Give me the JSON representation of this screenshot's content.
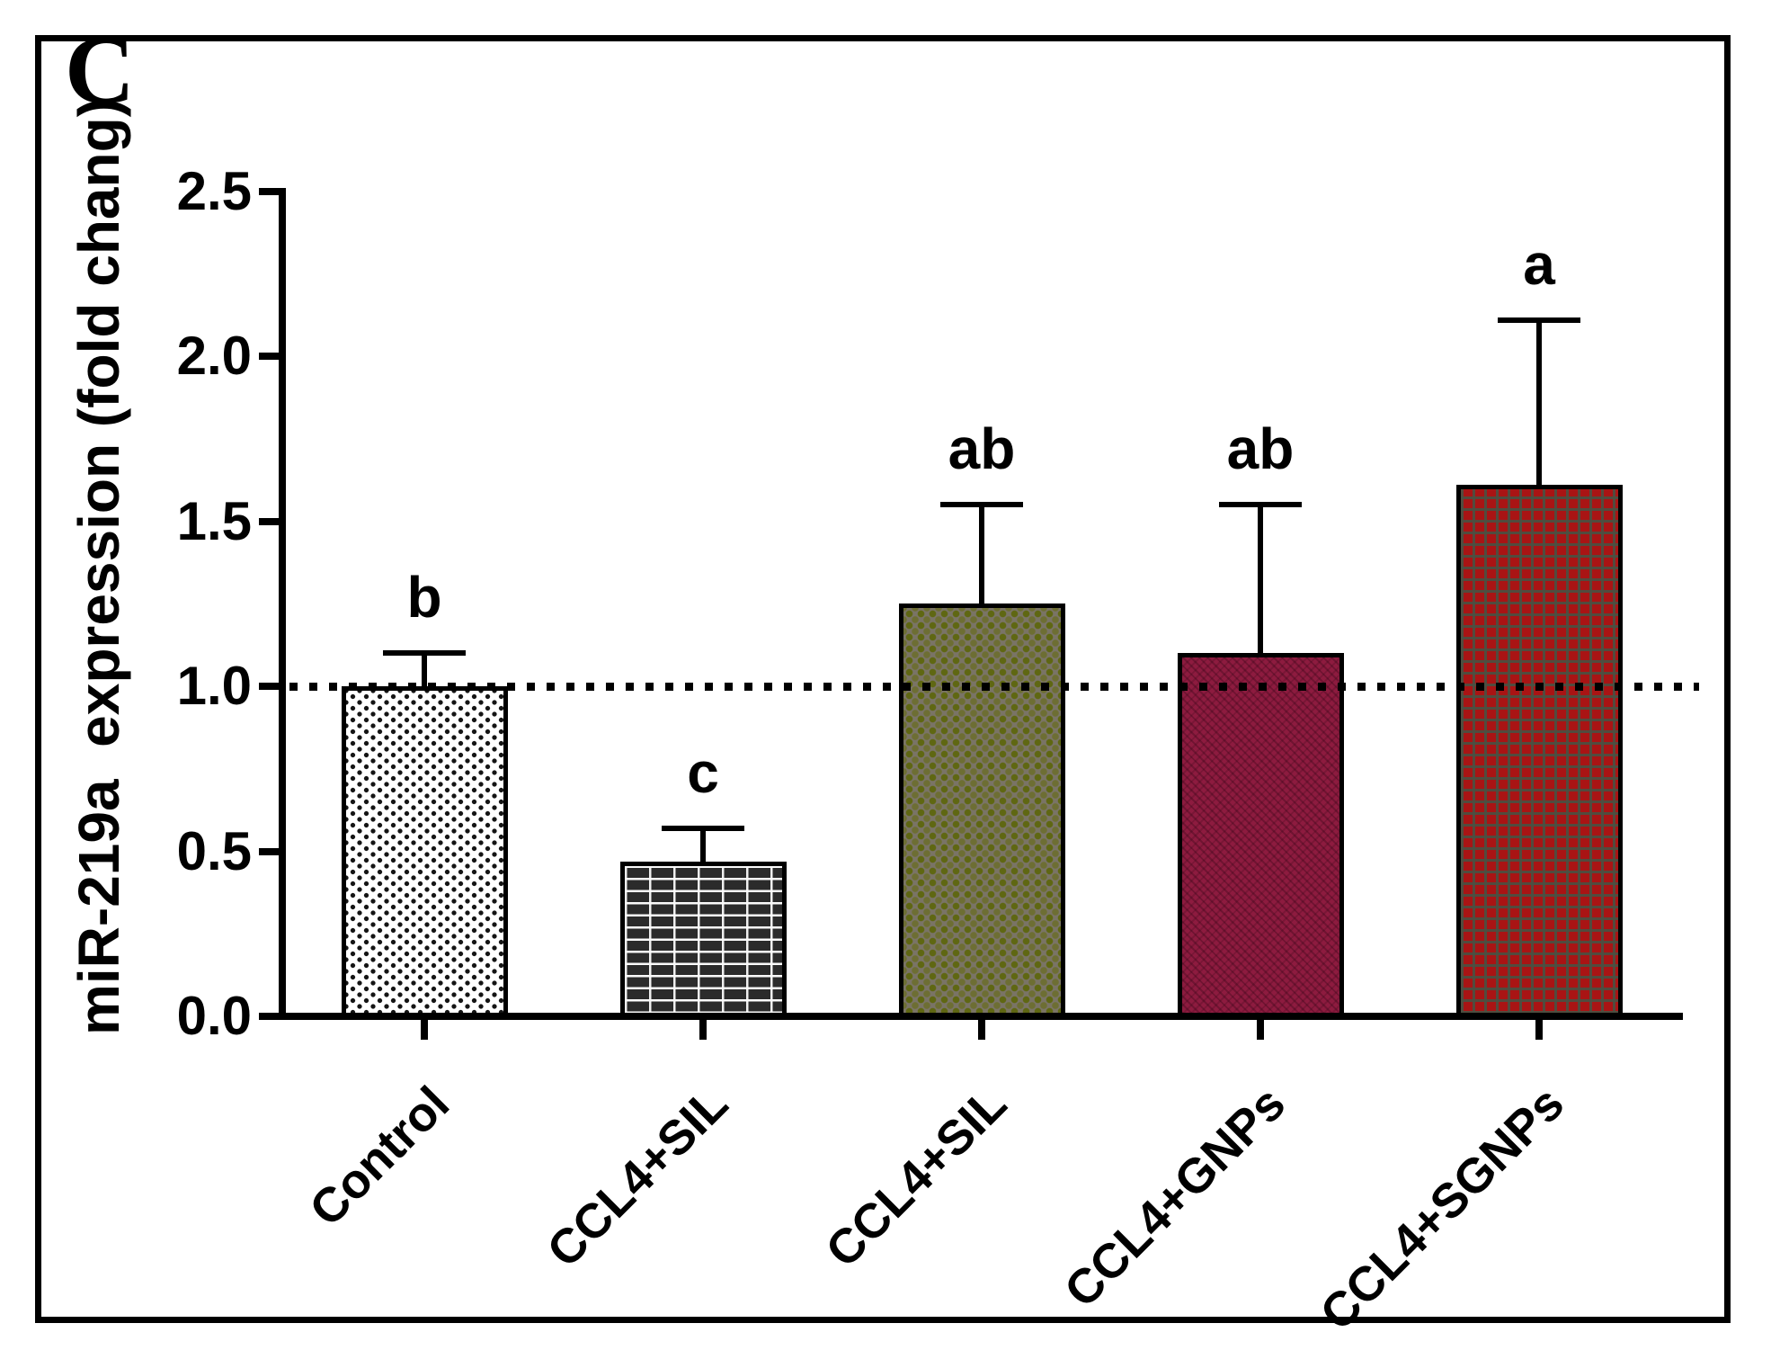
{
  "panel_label": "C",
  "chart_data": {
    "type": "bar",
    "title": "",
    "xlabel": "",
    "ylabel": "miR-219a  expression (fold chang)",
    "categories": [
      "Control",
      "CCL4+SIL",
      "CCL4+SIL",
      "CCL4+GNPs",
      "CCL4+SGNPs"
    ],
    "values": [
      1.0,
      0.47,
      1.25,
      1.1,
      1.61
    ],
    "error_tops": [
      1.1,
      0.57,
      1.55,
      1.55,
      2.11
    ],
    "sig_letters": [
      "b",
      "c",
      "ab",
      "ab",
      "a"
    ],
    "yticks": [
      "0.0",
      "0.5",
      "1.0",
      "1.5",
      "2.0",
      "2.5"
    ],
    "ytick_values": [
      0.0,
      0.5,
      1.0,
      1.5,
      2.0,
      2.5
    ],
    "ylim": [
      0,
      2.5
    ],
    "reference_line": 1.0,
    "grid": "off",
    "legend": "none",
    "bar_styles": [
      {
        "pattern": "speckle",
        "fill": "#ffffff",
        "accent": "#141414"
      },
      {
        "pattern": "brick",
        "fill": "#2b2b2b",
        "accent": "#fafafa"
      },
      {
        "pattern": "olive",
        "fill": "#7a7466",
        "accent": "#5f6712"
      },
      {
        "pattern": "weave",
        "fill": "#8d1b3f",
        "accent": "#23000e"
      },
      {
        "pattern": "check",
        "fill": "#a91414",
        "accent": "#4a5042"
      }
    ],
    "axis_color": "#000000"
  }
}
